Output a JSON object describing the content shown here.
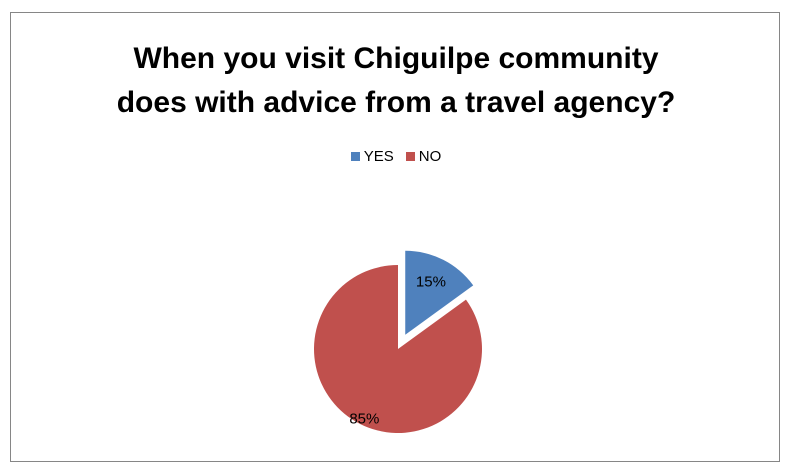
{
  "chart_data": {
    "type": "pie",
    "title": "When you visit Chiguilpe community does with advice from a travel agency?",
    "title_lines": [
      "When you visit Chiguilpe community",
      "does with advice from a travel agency?"
    ],
    "categories": [
      "YES",
      "NO"
    ],
    "values": [
      15,
      85
    ],
    "data_labels": [
      "15%",
      "85%"
    ],
    "colors": [
      "#4F81BD",
      "#C0504D"
    ],
    "exploded": [
      "YES"
    ],
    "legend": "top"
  }
}
